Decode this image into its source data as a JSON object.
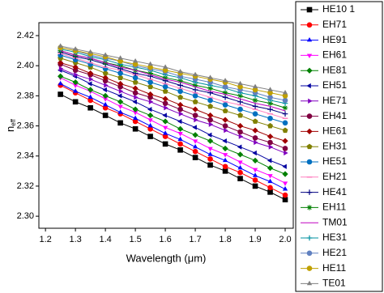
{
  "chart_data": {
    "type": "line",
    "x_label": "Wavelength (μm)",
    "y_label": "n",
    "y_label_sub": "eff",
    "x": [
      1.25,
      1.3,
      1.35,
      1.4,
      1.45,
      1.5,
      1.55,
      1.6,
      1.65,
      1.7,
      1.75,
      1.8,
      1.85,
      1.9,
      1.95,
      2.0
    ],
    "xlim": [
      1.178,
      2.027
    ],
    "ylim": [
      2.292,
      2.4286
    ],
    "xticks": [
      1.2,
      1.3,
      1.4,
      1.5,
      1.6,
      1.7,
      1.8,
      1.9,
      {
        "value": 2.0,
        "label": "2.0"
      }
    ],
    "yticks": [
      {
        "value": 2.3,
        "label": "2.30"
      },
      2.32,
      2.34,
      2.36,
      2.38,
      {
        "value": 2.4,
        "label": "2.40"
      },
      2.42
    ],
    "legend": "right-outside",
    "series": [
      {
        "name": "HE10 1",
        "color": "#000000",
        "marker": "square",
        "values": [
          2.381,
          2.376,
          2.372,
          2.367,
          2.362,
          2.358,
          2.353,
          2.348,
          2.344,
          2.339,
          2.334,
          2.33,
          2.325,
          2.32,
          2.316,
          2.311
        ]
      },
      {
        "name": "EH71",
        "color": "#ff0000",
        "marker": "circle",
        "values": [
          2.387,
          2.382,
          2.377,
          2.372,
          2.368,
          2.363,
          2.358,
          2.353,
          2.348,
          2.343,
          2.338,
          2.333,
          2.329,
          2.324,
          2.319,
          2.314
        ]
      },
      {
        "name": "HE91",
        "color": "#0000ff",
        "marker": "triangle-up",
        "values": [
          2.388,
          2.383,
          2.379,
          2.374,
          2.369,
          2.365,
          2.36,
          2.355,
          2.351,
          2.346,
          2.341,
          2.337,
          2.332,
          2.327,
          2.323,
          2.318
        ]
      },
      {
        "name": "EH61",
        "color": "#ff00ff",
        "marker": "triangle-down",
        "values": [
          2.392,
          2.387,
          2.383,
          2.378,
          2.373,
          2.369,
          2.364,
          2.359,
          2.355,
          2.35,
          2.345,
          2.341,
          2.336,
          2.331,
          2.327,
          2.322
        ]
      },
      {
        "name": "HE81",
        "color": "#008000",
        "marker": "diamond",
        "values": [
          2.393,
          2.389,
          2.384,
          2.38,
          2.376,
          2.371,
          2.367,
          2.363,
          2.358,
          2.354,
          2.35,
          2.345,
          2.341,
          2.337,
          2.332,
          2.328
        ]
      },
      {
        "name": "EH51",
        "color": "#0000a0",
        "marker": "triangle-left",
        "values": [
          2.397,
          2.393,
          2.388,
          2.384,
          2.38,
          2.376,
          2.371,
          2.367,
          2.363,
          2.359,
          2.354,
          2.35,
          2.346,
          2.342,
          2.337,
          2.333
        ]
      },
      {
        "name": "HE71",
        "color": "#8000c0",
        "marker": "triangle-right",
        "values": [
          2.398,
          2.394,
          2.391,
          2.387,
          2.383,
          2.379,
          2.376,
          2.372,
          2.368,
          2.364,
          2.361,
          2.357,
          2.353,
          2.349,
          2.346,
          2.342
        ]
      },
      {
        "name": "EH41",
        "color": "#800040",
        "marker": "circle",
        "values": [
          2.401,
          2.397,
          2.394,
          2.39,
          2.386,
          2.382,
          2.379,
          2.375,
          2.371,
          2.367,
          2.364,
          2.36,
          2.356,
          2.352,
          2.349,
          2.345
        ]
      },
      {
        "name": "HE61",
        "color": "#a00000",
        "marker": "diamond",
        "values": [
          2.402,
          2.399,
          2.395,
          2.392,
          2.388,
          2.385,
          2.381,
          2.378,
          2.374,
          2.371,
          2.367,
          2.364,
          2.36,
          2.357,
          2.353,
          2.35
        ]
      },
      {
        "name": "EH31",
        "color": "#808000",
        "marker": "pentagon",
        "values": [
          2.405,
          2.402,
          2.399,
          2.395,
          2.392,
          2.389,
          2.386,
          2.383,
          2.379,
          2.376,
          2.373,
          2.37,
          2.367,
          2.363,
          2.36,
          2.357
        ]
      },
      {
        "name": "HE51",
        "color": "#0070c0",
        "marker": "circle",
        "values": [
          2.407,
          2.404,
          2.401,
          2.398,
          2.395,
          2.392,
          2.389,
          2.386,
          2.383,
          2.38,
          2.377,
          2.374,
          2.371,
          2.368,
          2.365,
          2.362
        ]
      },
      {
        "name": "EH21",
        "color": "#ff80c0",
        "marker": "dash",
        "values": [
          2.408,
          2.405,
          2.402,
          2.399,
          2.397,
          2.394,
          2.391,
          2.388,
          2.385,
          2.382,
          2.379,
          2.376,
          2.374,
          2.371,
          2.368,
          2.365
        ]
      },
      {
        "name": "HE41",
        "color": "#000080",
        "marker": "plus",
        "values": [
          2.409,
          2.406,
          2.404,
          2.401,
          2.398,
          2.395,
          2.393,
          2.39,
          2.387,
          2.384,
          2.382,
          2.379,
          2.376,
          2.373,
          2.371,
          2.368
        ]
      },
      {
        "name": "EH11",
        "color": "#008000",
        "marker": "star",
        "values": [
          2.41,
          2.407,
          2.405,
          2.402,
          2.4,
          2.397,
          2.395,
          2.392,
          2.39,
          2.387,
          2.385,
          2.382,
          2.38,
          2.377,
          2.375,
          2.372
        ]
      },
      {
        "name": "TM01",
        "color": "#c000c0",
        "marker": "none",
        "values": [
          2.41,
          2.407,
          2.405,
          2.402,
          2.399,
          2.397,
          2.394,
          2.391,
          2.389,
          2.386,
          2.383,
          2.381,
          2.378,
          2.375,
          2.373,
          2.37
        ]
      },
      {
        "name": "HE31",
        "color": "#0090a0",
        "marker": "plus",
        "values": [
          2.411,
          2.409,
          2.406,
          2.404,
          2.401,
          2.399,
          2.397,
          2.394,
          2.392,
          2.389,
          2.387,
          2.385,
          2.382,
          2.38,
          2.377,
          2.375
        ]
      },
      {
        "name": "HE21",
        "color": "#6080c0",
        "marker": "circle",
        "values": [
          2.412,
          2.41,
          2.407,
          2.405,
          2.403,
          2.4,
          2.398,
          2.396,
          2.393,
          2.391,
          2.389,
          2.386,
          2.384,
          2.382,
          2.379,
          2.377
        ]
      },
      {
        "name": "HE11",
        "color": "#c0a000",
        "marker": "circle",
        "values": [
          2.412,
          2.41,
          2.408,
          2.406,
          2.403,
          2.401,
          2.399,
          2.397,
          2.395,
          2.393,
          2.391,
          2.389,
          2.386,
          2.384,
          2.382,
          2.38
        ]
      },
      {
        "name": "TE01",
        "color": "#808080",
        "marker": "triangle-up",
        "values": [
          2.413,
          2.411,
          2.409,
          2.407,
          2.405,
          2.403,
          2.401,
          2.399,
          2.396,
          2.394,
          2.392,
          2.39,
          2.388,
          2.386,
          2.384,
          2.382
        ]
      }
    ]
  }
}
